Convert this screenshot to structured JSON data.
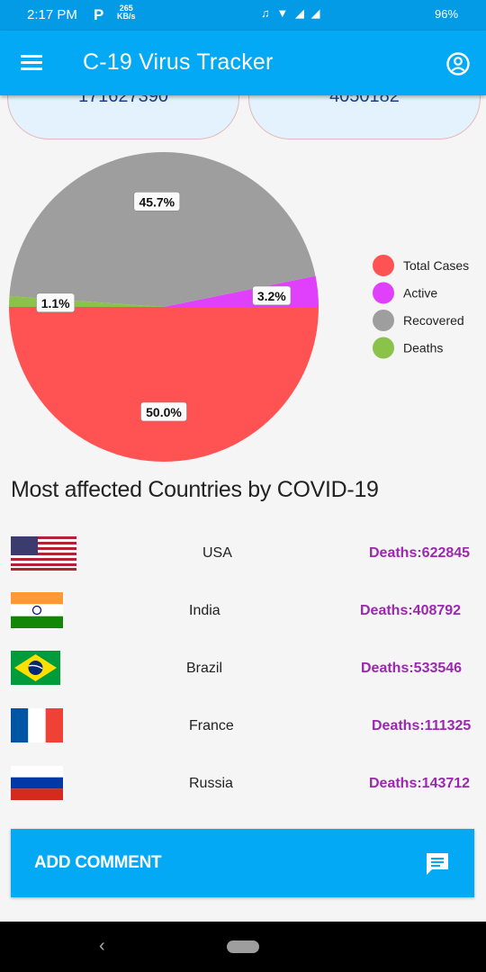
{
  "status_bar": {
    "time": "2:17 PM",
    "app_badge": "P",
    "speed_value": "265",
    "speed_unit": "KB/s",
    "battery": "96%"
  },
  "app_bar": {
    "title": "C-19 Virus Tracker"
  },
  "summary_cards": [
    {
      "value": "171627390"
    },
    {
      "value": "4050182"
    }
  ],
  "chart_data": {
    "type": "pie",
    "slices": [
      {
        "name": "Total Cases",
        "value": 50.0,
        "label": "50.0%",
        "color": "#ff5252"
      },
      {
        "name": "Active",
        "value": 3.2,
        "label": "3.2%",
        "color": "#e040fb"
      },
      {
        "name": "Recovered",
        "value": 45.7,
        "label": "45.7%",
        "color": "#9e9e9e"
      },
      {
        "name": "Deaths",
        "value": 1.1,
        "label": "1.1%",
        "color": "#8bc34a"
      }
    ],
    "legend_placement": "right"
  },
  "section_title": "Most affected Countries by COVID-19",
  "countries": [
    {
      "name": "USA",
      "deaths": "Deaths:622845",
      "flag_icon": "usa-flag-icon"
    },
    {
      "name": "India",
      "deaths": "Deaths:408792",
      "flag_icon": "india-flag-icon"
    },
    {
      "name": "Brazil",
      "deaths": "Deaths:533546",
      "flag_icon": "brazil-flag-icon"
    },
    {
      "name": "France",
      "deaths": "Deaths:111325",
      "flag_icon": "france-flag-icon"
    },
    {
      "name": "Russia",
      "deaths": "Deaths:143712",
      "flag_icon": "russia-flag-icon"
    }
  ],
  "add_comment": {
    "label": "ADD COMMENT",
    "icon": "comment-icon"
  },
  "colors": {
    "app_bar": "#03a9f4",
    "status_bar": "#039be5",
    "deaths_text": "#9c27b0"
  }
}
